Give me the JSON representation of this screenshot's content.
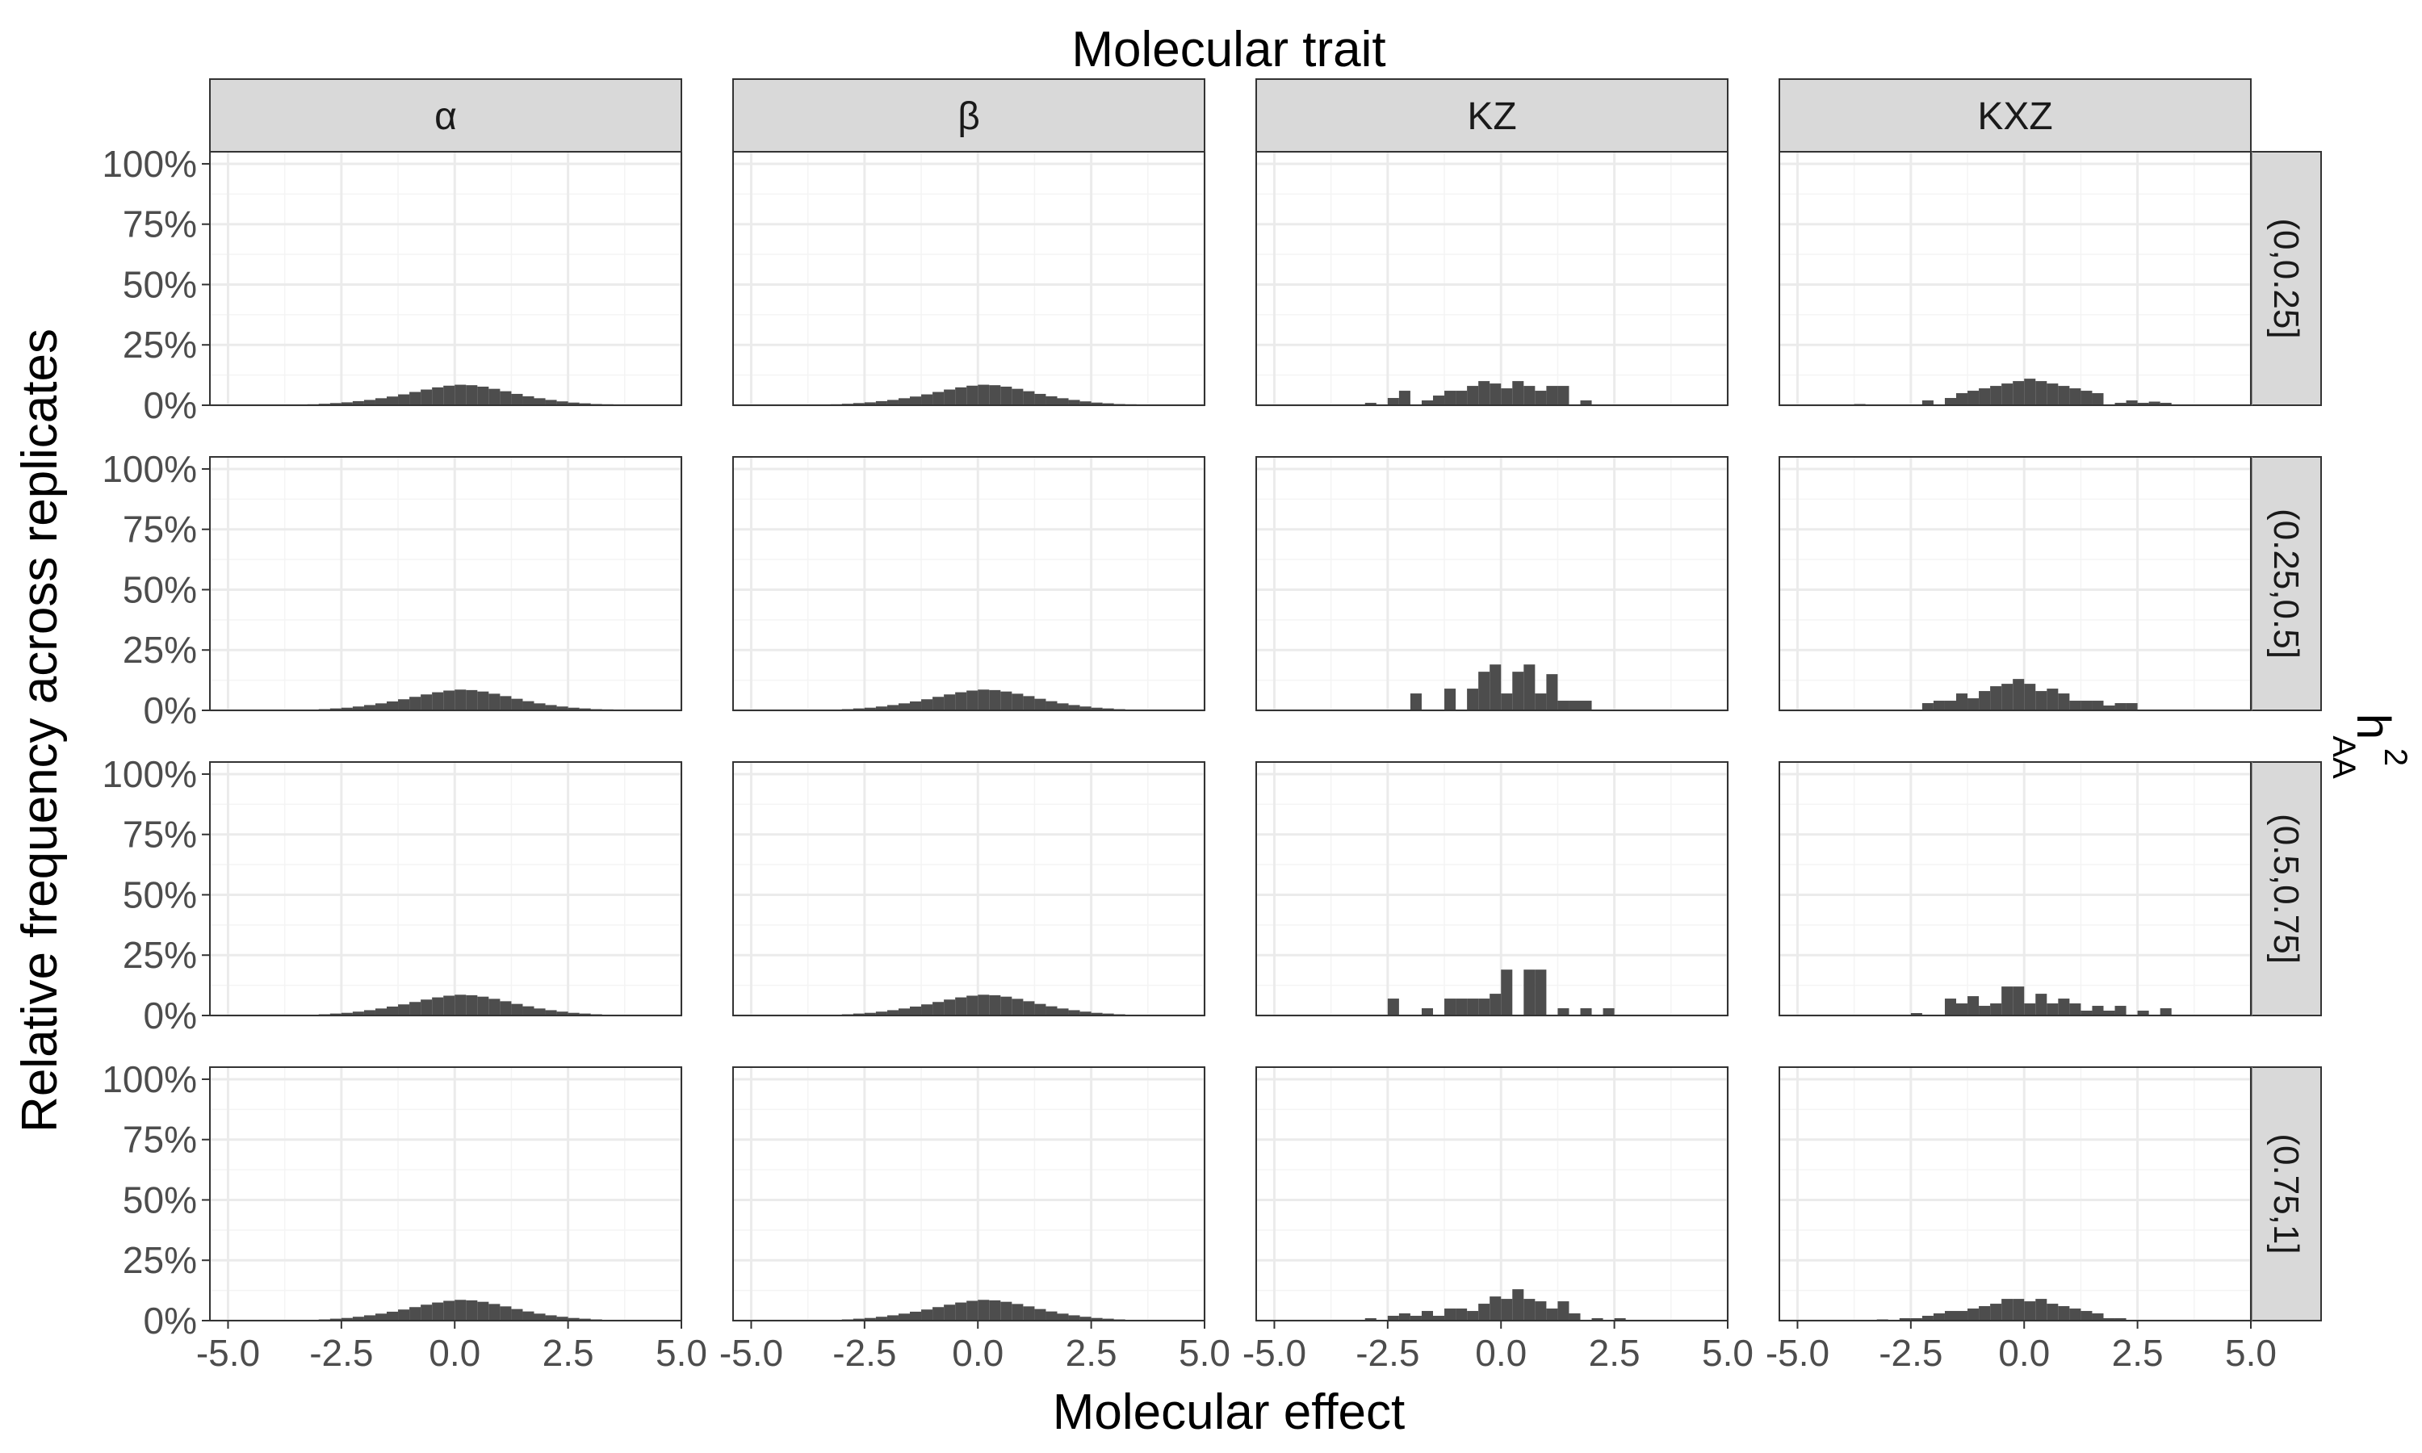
{
  "figure": {
    "title": "Molecular trait",
    "xlabel": "Molecular effect",
    "ylabel": "Relative frequency across replicates",
    "row_strip_title_main": "h",
    "row_strip_title_sup": "2",
    "row_strip_title_sub": "AA"
  },
  "chart_data": {
    "type": "bar",
    "facet_layout": "grid",
    "col_facets": [
      "α",
      "β",
      "KZ",
      "KXZ"
    ],
    "row_facets": [
      "(0,0.25]",
      "(0.25,0.5]",
      "(0.5,0.75]",
      "(0.75,1]"
    ],
    "xlabel": "Molecular effect",
    "ylabel": "Relative frequency across replicates",
    "xlim": [
      -5.4,
      5.0
    ],
    "ylim": [
      0,
      1.05
    ],
    "x_ticks": [
      -5.0,
      -2.5,
      0.0,
      2.5,
      5.0
    ],
    "x_tick_labels": [
      "-5.0",
      "-2.5",
      "0.0",
      "2.5",
      "5.0"
    ],
    "y_ticks": [
      0,
      0.25,
      0.5,
      0.75,
      1.0
    ],
    "y_tick_labels": [
      "0%",
      "25%",
      "50%",
      "75%",
      "100%"
    ],
    "grid": true,
    "bar_color": "#4d4d4d",
    "panel_background": "#ffffff",
    "grid_color": "#ebebeb",
    "strip_background": "#d9d9d9",
    "bin_width": 0.25,
    "panels": [
      {
        "row": 0,
        "col": 0,
        "bin_starts": [
          -4.75,
          -4.5,
          -4.25,
          -4.0,
          -3.75,
          -3.5,
          -3.25,
          -3.0,
          -2.75,
          -2.5,
          -2.25,
          -2.0,
          -1.75,
          -1.5,
          -1.25,
          -1.0,
          -0.75,
          -0.5,
          -0.25,
          0.0,
          0.25,
          0.5,
          0.75,
          1.0,
          1.25,
          1.5,
          1.75,
          2.0,
          2.25,
          2.5,
          2.75,
          3.0,
          3.25,
          3.5,
          3.75,
          4.0
        ],
        "values": [
          0.001,
          0.001,
          0.001,
          0.002,
          0.002,
          0.003,
          0.004,
          0.006,
          0.009,
          0.012,
          0.017,
          0.022,
          0.029,
          0.036,
          0.045,
          0.055,
          0.065,
          0.074,
          0.081,
          0.085,
          0.083,
          0.077,
          0.068,
          0.058,
          0.047,
          0.037,
          0.029,
          0.022,
          0.016,
          0.011,
          0.008,
          0.005,
          0.004,
          0.003,
          0.002,
          0.001
        ]
      },
      {
        "row": 0,
        "col": 1,
        "bin_starts": [
          -4.75,
          -4.5,
          -4.25,
          -4.0,
          -3.75,
          -3.5,
          -3.25,
          -3.0,
          -2.75,
          -2.5,
          -2.25,
          -2.0,
          -1.75,
          -1.5,
          -1.25,
          -1.0,
          -0.75,
          -0.5,
          -0.25,
          0.0,
          0.25,
          0.5,
          0.75,
          1.0,
          1.25,
          1.5,
          1.75,
          2.0,
          2.25,
          2.5,
          2.75,
          3.0,
          3.25,
          3.5,
          3.75
        ],
        "values": [
          0.001,
          0.001,
          0.001,
          0.002,
          0.002,
          0.003,
          0.004,
          0.006,
          0.009,
          0.012,
          0.017,
          0.022,
          0.029,
          0.036,
          0.045,
          0.055,
          0.065,
          0.074,
          0.081,
          0.085,
          0.083,
          0.077,
          0.068,
          0.058,
          0.047,
          0.037,
          0.029,
          0.022,
          0.016,
          0.011,
          0.008,
          0.005,
          0.004,
          0.003,
          0.002
        ]
      },
      {
        "row": 0,
        "col": 2,
        "bin_starts": [
          -3.0,
          -2.5,
          -2.25,
          -1.75,
          -1.5,
          -1.25,
          -1.0,
          -0.75,
          -0.5,
          -0.25,
          0.0,
          0.25,
          0.5,
          0.75,
          1.0,
          1.25,
          1.75
        ],
        "values": [
          0.01,
          0.03,
          0.06,
          0.02,
          0.04,
          0.06,
          0.06,
          0.08,
          0.1,
          0.09,
          0.07,
          0.1,
          0.08,
          0.06,
          0.08,
          0.08,
          0.02
        ]
      },
      {
        "row": 0,
        "col": 3,
        "bin_starts": [
          -3.75,
          -2.25,
          -1.75,
          -1.5,
          -1.25,
          -1.0,
          -0.75,
          -0.5,
          -0.25,
          0.0,
          0.25,
          0.5,
          0.75,
          1.0,
          1.25,
          1.5,
          2.0,
          2.25,
          2.5,
          2.75,
          3.0
        ],
        "values": [
          0.005,
          0.02,
          0.03,
          0.05,
          0.06,
          0.07,
          0.08,
          0.09,
          0.1,
          0.11,
          0.1,
          0.09,
          0.08,
          0.07,
          0.06,
          0.05,
          0.01,
          0.02,
          0.01,
          0.015,
          0.01
        ]
      },
      {
        "row": 1,
        "col": 0,
        "bin_starts": [
          -3.5,
          -3.25,
          -3.0,
          -2.75,
          -2.5,
          -2.25,
          -2.0,
          -1.75,
          -1.5,
          -1.25,
          -1.0,
          -0.75,
          -0.5,
          -0.25,
          0.0,
          0.25,
          0.5,
          0.75,
          1.0,
          1.25,
          1.5,
          1.75,
          2.0,
          2.25,
          2.5,
          2.75,
          3.0,
          3.25,
          3.5,
          3.75,
          4.0
        ],
        "values": [
          0.002,
          0.003,
          0.005,
          0.008,
          0.011,
          0.016,
          0.022,
          0.029,
          0.037,
          0.046,
          0.056,
          0.066,
          0.075,
          0.082,
          0.086,
          0.084,
          0.078,
          0.069,
          0.059,
          0.048,
          0.038,
          0.029,
          0.022,
          0.016,
          0.011,
          0.008,
          0.005,
          0.004,
          0.003,
          0.002,
          0.001
        ]
      },
      {
        "row": 1,
        "col": 1,
        "bin_starts": [
          -3.25,
          -3.0,
          -2.75,
          -2.5,
          -2.25,
          -2.0,
          -1.75,
          -1.5,
          -1.25,
          -1.0,
          -0.75,
          -0.5,
          -0.25,
          0.0,
          0.25,
          0.5,
          0.75,
          1.0,
          1.25,
          1.5,
          1.75,
          2.0,
          2.25,
          2.5,
          2.75,
          3.0,
          3.25,
          3.5
        ],
        "values": [
          0.003,
          0.005,
          0.008,
          0.011,
          0.016,
          0.022,
          0.029,
          0.037,
          0.046,
          0.056,
          0.066,
          0.075,
          0.082,
          0.086,
          0.084,
          0.078,
          0.069,
          0.059,
          0.048,
          0.038,
          0.029,
          0.022,
          0.016,
          0.011,
          0.008,
          0.005,
          0.003,
          0.002
        ]
      },
      {
        "row": 1,
        "col": 2,
        "bin_starts": [
          -2.0,
          -1.25,
          -0.75,
          -0.5,
          -0.25,
          0.0,
          0.25,
          0.5,
          0.75,
          1.0,
          1.25,
          1.5,
          1.75
        ],
        "values": [
          0.07,
          0.09,
          0.09,
          0.16,
          0.19,
          0.07,
          0.16,
          0.19,
          0.07,
          0.15,
          0.04,
          0.04,
          0.04
        ]
      },
      {
        "row": 1,
        "col": 3,
        "bin_starts": [
          -2.25,
          -2.0,
          -1.75,
          -1.5,
          -1.25,
          -1.0,
          -0.75,
          -0.5,
          -0.25,
          0.0,
          0.25,
          0.5,
          0.75,
          1.0,
          1.25,
          1.5,
          1.75,
          2.0,
          2.25
        ],
        "values": [
          0.03,
          0.04,
          0.04,
          0.07,
          0.05,
          0.08,
          0.1,
          0.11,
          0.13,
          0.11,
          0.08,
          0.09,
          0.07,
          0.04,
          0.04,
          0.04,
          0.02,
          0.03,
          0.03
        ]
      },
      {
        "row": 2,
        "col": 0,
        "bin_starts": [
          -3.25,
          -3.0,
          -2.75,
          -2.5,
          -2.25,
          -2.0,
          -1.75,
          -1.5,
          -1.25,
          -1.0,
          -0.75,
          -0.5,
          -0.25,
          0.0,
          0.25,
          0.5,
          0.75,
          1.0,
          1.25,
          1.5,
          1.75,
          2.0,
          2.25,
          2.5,
          2.75,
          3.0,
          3.25
        ],
        "values": [
          0.003,
          0.005,
          0.008,
          0.011,
          0.016,
          0.022,
          0.029,
          0.037,
          0.046,
          0.056,
          0.066,
          0.075,
          0.082,
          0.086,
          0.084,
          0.078,
          0.069,
          0.059,
          0.048,
          0.038,
          0.029,
          0.022,
          0.016,
          0.011,
          0.008,
          0.005,
          0.003
        ]
      },
      {
        "row": 2,
        "col": 1,
        "bin_starts": [
          -3.0,
          -2.75,
          -2.5,
          -2.25,
          -2.0,
          -1.75,
          -1.5,
          -1.25,
          -1.0,
          -0.75,
          -0.5,
          -0.25,
          0.0,
          0.25,
          0.5,
          0.75,
          1.0,
          1.25,
          1.5,
          1.75,
          2.0,
          2.25,
          2.5,
          2.75,
          3.0
        ],
        "values": [
          0.005,
          0.008,
          0.011,
          0.016,
          0.022,
          0.029,
          0.037,
          0.046,
          0.056,
          0.066,
          0.075,
          0.082,
          0.086,
          0.084,
          0.078,
          0.069,
          0.059,
          0.048,
          0.038,
          0.029,
          0.022,
          0.016,
          0.011,
          0.008,
          0.005
        ]
      },
      {
        "row": 2,
        "col": 2,
        "bin_starts": [
          -2.5,
          -1.75,
          -1.25,
          -1.0,
          -0.75,
          -0.5,
          -0.25,
          0.0,
          0.5,
          0.75,
          1.25,
          1.75,
          2.25
        ],
        "values": [
          0.07,
          0.03,
          0.07,
          0.07,
          0.07,
          0.07,
          0.09,
          0.19,
          0.19,
          0.19,
          0.03,
          0.03,
          0.03
        ]
      },
      {
        "row": 2,
        "col": 3,
        "bin_starts": [
          -2.5,
          -1.75,
          -1.5,
          -1.25,
          -1.0,
          -0.75,
          -0.5,
          -0.25,
          0.0,
          0.25,
          0.5,
          0.75,
          1.0,
          1.25,
          1.5,
          1.75,
          2.0,
          2.5,
          3.0
        ],
        "values": [
          0.01,
          0.07,
          0.05,
          0.08,
          0.04,
          0.05,
          0.12,
          0.12,
          0.05,
          0.09,
          0.05,
          0.07,
          0.05,
          0.02,
          0.04,
          0.02,
          0.04,
          0.02,
          0.03
        ]
      },
      {
        "row": 3,
        "col": 0,
        "bin_starts": [
          -3.25,
          -3.0,
          -2.75,
          -2.5,
          -2.25,
          -2.0,
          -1.75,
          -1.5,
          -1.25,
          -1.0,
          -0.75,
          -0.5,
          -0.25,
          0.0,
          0.25,
          0.5,
          0.75,
          1.0,
          1.25,
          1.5,
          1.75,
          2.0,
          2.25,
          2.5,
          2.75,
          3.0
        ],
        "values": [
          0.003,
          0.005,
          0.008,
          0.011,
          0.016,
          0.022,
          0.029,
          0.037,
          0.046,
          0.056,
          0.066,
          0.075,
          0.082,
          0.086,
          0.084,
          0.078,
          0.069,
          0.059,
          0.048,
          0.038,
          0.029,
          0.022,
          0.016,
          0.011,
          0.008,
          0.005
        ]
      },
      {
        "row": 3,
        "col": 1,
        "bin_starts": [
          -3.25,
          -3.0,
          -2.75,
          -2.5,
          -2.25,
          -2.0,
          -1.75,
          -1.5,
          -1.25,
          -1.0,
          -0.75,
          -0.5,
          -0.25,
          0.0,
          0.25,
          0.5,
          0.75,
          1.0,
          1.25,
          1.5,
          1.75,
          2.0,
          2.25,
          2.5,
          2.75,
          3.0
        ],
        "values": [
          0.003,
          0.005,
          0.008,
          0.011,
          0.016,
          0.022,
          0.029,
          0.037,
          0.046,
          0.056,
          0.066,
          0.075,
          0.082,
          0.086,
          0.084,
          0.078,
          0.069,
          0.059,
          0.048,
          0.038,
          0.029,
          0.022,
          0.016,
          0.011,
          0.008,
          0.005
        ]
      },
      {
        "row": 3,
        "col": 2,
        "bin_starts": [
          -3.0,
          -2.5,
          -2.25,
          -2.0,
          -1.75,
          -1.5,
          -1.25,
          -1.0,
          -0.75,
          -0.5,
          -0.25,
          0.0,
          0.25,
          0.5,
          0.75,
          1.0,
          1.25,
          1.5,
          2.0,
          2.5
        ],
        "values": [
          0.01,
          0.02,
          0.03,
          0.02,
          0.04,
          0.02,
          0.05,
          0.05,
          0.04,
          0.07,
          0.1,
          0.09,
          0.13,
          0.09,
          0.08,
          0.05,
          0.08,
          0.03,
          0.01,
          0.01
        ]
      },
      {
        "row": 3,
        "col": 3,
        "bin_starts": [
          -3.25,
          -2.75,
          -2.5,
          -2.25,
          -2.0,
          -1.75,
          -1.5,
          -1.25,
          -1.0,
          -0.75,
          -0.5,
          -0.25,
          0.0,
          0.25,
          0.5,
          0.75,
          1.0,
          1.25,
          1.5,
          1.75,
          2.0
        ],
        "values": [
          0.005,
          0.01,
          0.01,
          0.02,
          0.03,
          0.04,
          0.04,
          0.05,
          0.06,
          0.07,
          0.09,
          0.09,
          0.08,
          0.09,
          0.07,
          0.06,
          0.05,
          0.04,
          0.03,
          0.01,
          0.01
        ]
      }
    ]
  }
}
